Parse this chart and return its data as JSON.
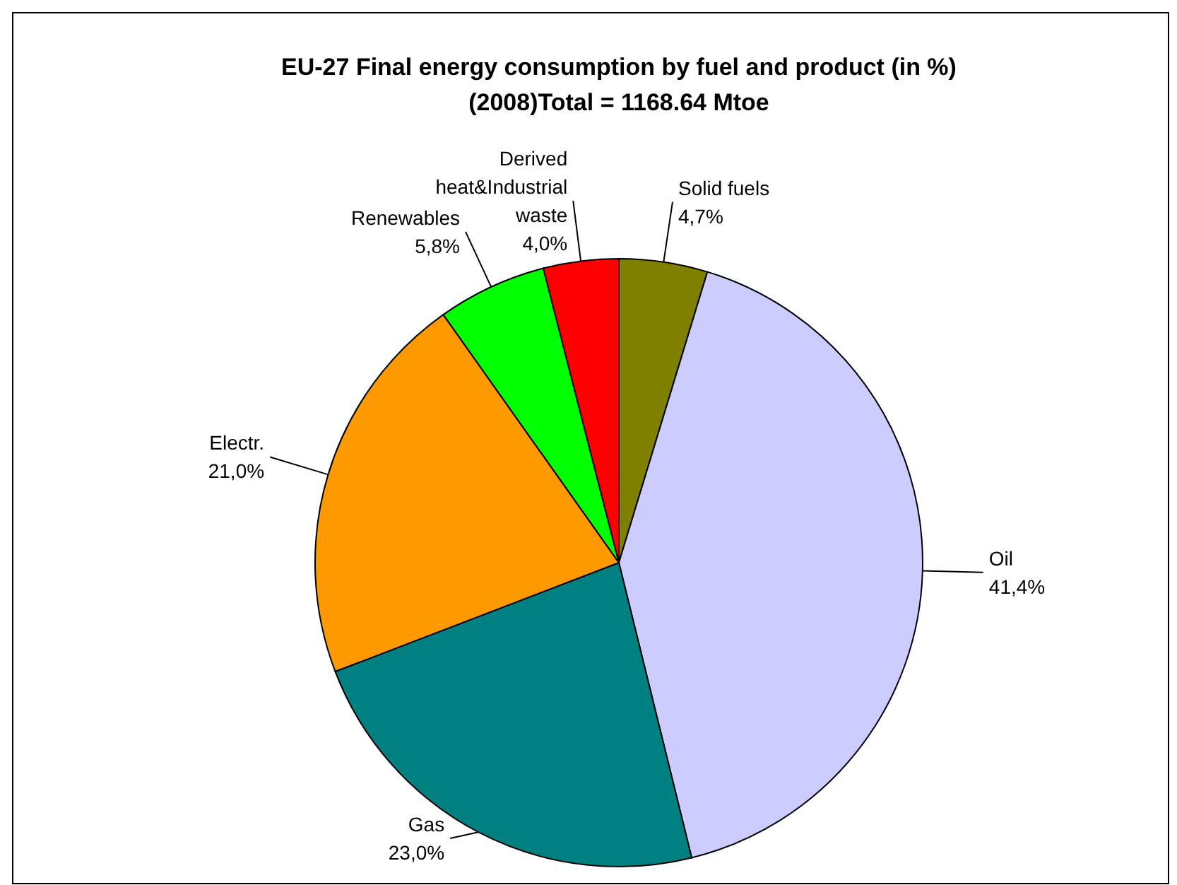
{
  "chart_data": {
    "type": "pie",
    "title": "EU-27 Final energy consumption by fuel and product (in %)",
    "subtitle": "(2008)Total = 1168.64 Mtoe",
    "categories": [
      "Solid fuels",
      "Oil",
      "Gas",
      "Electr.",
      "Renewables",
      "Derived heat&Industrial waste"
    ],
    "values": [
      4.7,
      41.4,
      23.0,
      21.0,
      5.8,
      4.0
    ],
    "colors": [
      "#808000",
      "#ccccff",
      "#008080",
      "#ff9900",
      "#00ff00",
      "#ff0000"
    ],
    "value_labels": [
      "4,7%",
      "41,4%",
      "23,0%",
      "21,0%",
      "5,8%",
      "4,0%"
    ]
  }
}
